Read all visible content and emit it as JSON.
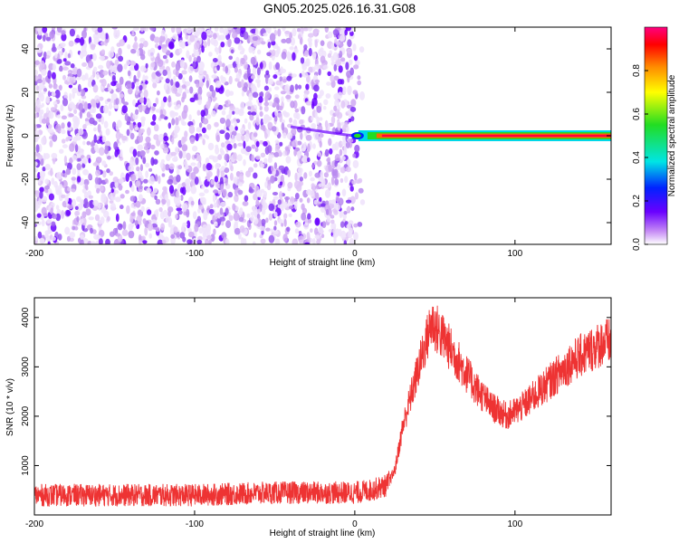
{
  "title": "GN05.2025.026.16.31.G08",
  "chart_data": [
    {
      "type": "heatmap",
      "xlabel": "Height of straight line (km)",
      "ylabel": "Frequency (Hz)",
      "xlim": [
        -200,
        160
      ],
      "ylim": [
        -50,
        50
      ],
      "xticks": [
        -200,
        -100,
        0,
        100
      ],
      "yticks": [
        -40,
        -20,
        0,
        20,
        40
      ],
      "colorbar": {
        "label": "Normalized spectral amplitude",
        "range": [
          0,
          1
        ],
        "ticks": [
          "0.0",
          "0.2",
          "0.4",
          "0.6",
          "0.8"
        ]
      },
      "noise_region_x": [
        -200,
        5
      ],
      "signal": {
        "x_start": 0,
        "x_end": 160,
        "frequency": 0,
        "amplitude": 1.0
      }
    },
    {
      "type": "line",
      "xlabel": "Height of straight line (km)",
      "ylabel": "SNR (10 * v/v)",
      "xlim": [
        -200,
        160
      ],
      "ylim": [
        0,
        4400
      ],
      "xticks": [
        -200,
        -100,
        0,
        100
      ],
      "yticks": [
        1000,
        2000,
        3000,
        4000
      ],
      "color": "#ee3333",
      "series": [
        {
          "x": [
            -200,
            -150,
            -100,
            -50,
            0,
            10,
            20,
            25,
            30,
            40,
            48,
            55,
            65,
            75,
            85,
            95,
            105,
            115,
            125,
            135,
            145,
            155,
            160
          ],
          "values": [
            400,
            400,
            400,
            450,
            450,
            500,
            600,
            900,
            1800,
            3000,
            3900,
            3600,
            3100,
            2600,
            2200,
            2000,
            2200,
            2500,
            2800,
            3100,
            3300,
            3500,
            3500
          ]
        }
      ]
    }
  ]
}
